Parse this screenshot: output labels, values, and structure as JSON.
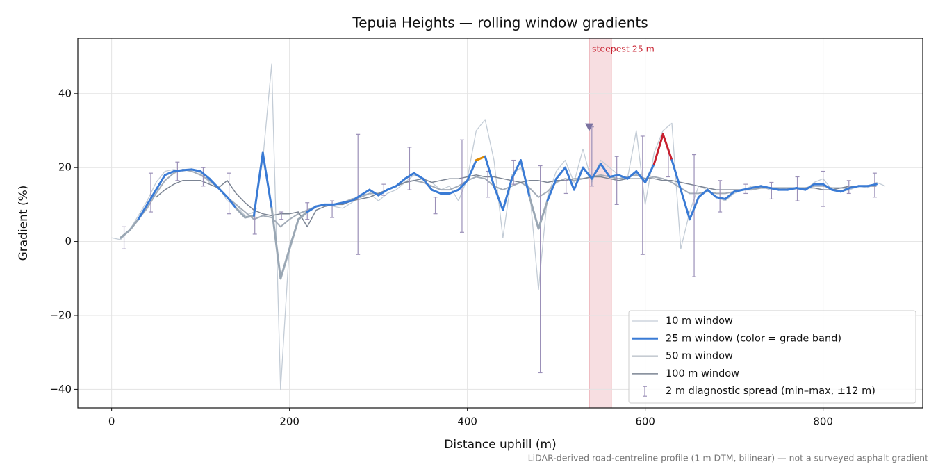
{
  "chart_data": {
    "type": "line",
    "title": "Tepuia Heights — rolling window gradients",
    "x_label": "Distance uphill (m)",
    "y_label": "Gradient (%)",
    "footnote": "LiDAR-derived road-centreline profile (1 m DTM, bilinear) — not a surveyed asphalt gradient",
    "xlim": [
      -38,
      912
    ],
    "ylim": [
      -45,
      55
    ],
    "xticks": [
      0,
      200,
      400,
      600,
      800
    ],
    "yticks": [
      {
        "value": -40,
        "label": "−40"
      },
      {
        "value": -20,
        "label": "−20"
      },
      0,
      20,
      40
    ],
    "grid": true,
    "legend": "lower right",
    "x": [
      0,
      10,
      20,
      30,
      40,
      50,
      60,
      70,
      80,
      90,
      100,
      110,
      120,
      130,
      140,
      150,
      160,
      170,
      180,
      190,
      200,
      210,
      220,
      230,
      240,
      250,
      260,
      270,
      280,
      290,
      300,
      310,
      320,
      330,
      340,
      350,
      360,
      370,
      380,
      390,
      400,
      410,
      420,
      430,
      440,
      450,
      460,
      470,
      480,
      490,
      500,
      510,
      520,
      530,
      540,
      550,
      560,
      570,
      580,
      590,
      600,
      610,
      620,
      630,
      640,
      650,
      660,
      670,
      680,
      690,
      700,
      710,
      720,
      730,
      740,
      750,
      760,
      770,
      780,
      790,
      800,
      810,
      820,
      830,
      840,
      850,
      860,
      870
    ],
    "series": [
      {
        "name": "10 m window",
        "color": "#c3ccd6",
        "values": [
          1,
          0.5,
          3,
          7,
          11,
          16,
          19,
          19.5,
          19,
          19.5,
          18.5,
          16,
          15,
          11,
          10,
          7,
          8,
          22,
          48,
          -40,
          -1,
          6,
          8.5,
          9.5,
          10,
          9.5,
          9,
          10.5,
          12.5,
          13,
          11,
          13,
          14,
          16,
          18,
          17,
          16,
          14,
          15,
          11,
          17,
          30,
          33,
          22,
          1,
          18,
          20,
          14,
          -13,
          12,
          19,
          22,
          16,
          25,
          16,
          22,
          20,
          18,
          17,
          30,
          10,
          24,
          30,
          32,
          -2,
          8,
          15,
          14,
          12,
          11,
          13,
          14,
          15,
          15,
          14,
          14,
          14.5,
          14,
          14,
          16,
          17,
          14,
          13.5,
          14,
          15,
          14.5,
          16,
          15
        ]
      },
      {
        "name": "25 m window (color = grade band)",
        "color": "#3a7bd5",
        "grade_bands": [
          {
            "below": 8,
            "color": "#9aa7b4"
          },
          {
            "below": 20,
            "color": "#3a7bd5"
          },
          {
            "below": 25,
            "color": "#e08a00"
          },
          {
            "color": "#c8202f"
          }
        ],
        "values": [
          null,
          1,
          3,
          6,
          10,
          14,
          18,
          19,
          19.3,
          19.5,
          19,
          17,
          14.5,
          12,
          9,
          6.5,
          7,
          24,
          9,
          -10,
          -2,
          6,
          8,
          9.5,
          10,
          10,
          10.5,
          11,
          12.5,
          14,
          12.5,
          14,
          15,
          17,
          18.5,
          17,
          14,
          13,
          13,
          14,
          16.5,
          22,
          23,
          15,
          8.5,
          17,
          22,
          12,
          3.5,
          11,
          17,
          20,
          14,
          20,
          17,
          21,
          17.5,
          18,
          17,
          19,
          16,
          21,
          29,
          22,
          14,
          6,
          12,
          14,
          12,
          11.5,
          13.5,
          14,
          14.5,
          15,
          14.5,
          14,
          14,
          14.5,
          14,
          15.5,
          15.5,
          14,
          13.5,
          14.5,
          15,
          15,
          15.5,
          null
        ]
      },
      {
        "name": "50 m window",
        "color": "#a3acb8",
        "values": [
          null,
          null,
          3,
          6,
          9,
          13,
          16.5,
          18.5,
          19.5,
          19,
          18,
          16.5,
          14.5,
          12,
          10,
          8,
          6,
          7,
          6.5,
          4,
          6,
          7.5,
          8.5,
          9.5,
          10,
          10,
          10.5,
          11.5,
          12,
          13,
          13,
          14,
          15,
          16,
          16.5,
          16,
          15,
          14,
          14,
          15,
          16.5,
          17.5,
          17,
          15,
          14,
          15,
          16,
          14.5,
          12,
          13.5,
          16,
          17,
          16.5,
          17,
          17.5,
          18,
          17.5,
          17,
          17.5,
          18,
          17,
          17.5,
          17,
          16,
          14.5,
          13,
          13,
          13.5,
          13,
          13,
          13.5,
          14,
          14,
          14.5,
          14.5,
          14.5,
          14.5,
          14.5,
          14.5,
          15,
          15,
          14.5,
          14.5,
          14.5,
          15,
          15,
          15,
          null
        ]
      },
      {
        "name": "100 m window",
        "color": "#7b8493",
        "values": [
          null,
          null,
          null,
          null,
          null,
          12,
          14,
          15.5,
          16.5,
          16.5,
          16.5,
          15.5,
          14.5,
          16.5,
          13,
          10.5,
          8.5,
          7.5,
          7,
          7.5,
          7.5,
          8,
          4,
          8.5,
          9.5,
          10,
          10,
          11,
          11.5,
          12,
          13,
          14,
          15,
          16,
          16.5,
          17,
          16,
          16.5,
          17,
          17,
          17.5,
          18,
          17.5,
          17.5,
          17,
          16.5,
          16,
          16.5,
          16.5,
          16,
          16.5,
          16.5,
          17,
          17,
          17.5,
          17.5,
          17,
          16.5,
          17,
          17,
          17,
          17,
          16.5,
          16.5,
          16,
          15.5,
          15,
          14.5,
          14,
          14,
          14,
          14,
          14.5,
          14.5,
          14.5,
          14.5,
          14.5,
          14.5,
          14.5,
          14.5,
          14,
          14,
          14.5,
          15,
          15,
          15,
          15,
          null
        ]
      }
    ],
    "error_bars": {
      "name": "2 m diagnostic spread (min–max, ±12 m)",
      "color": "#9b90b8",
      "x": [
        14,
        44,
        74,
        103,
        132,
        161,
        191,
        220,
        248,
        277,
        306,
        335,
        364,
        394,
        423,
        452,
        482,
        511,
        540,
        568,
        597,
        626,
        655,
        684,
        713,
        742,
        771,
        800,
        829,
        858
      ],
      "low": [
        -2,
        8,
        16.5,
        15,
        7.5,
        2,
        6,
        6,
        6.5,
        -3.5,
        12.5,
        14,
        7.5,
        2.5,
        12,
        15.5,
        -35.5,
        13,
        15,
        10,
        -3.5,
        17.5,
        -9.5,
        8,
        13,
        11.5,
        11,
        9.5,
        13,
        12
      ],
      "high": [
        4,
        18.5,
        21.5,
        20,
        18.5,
        9,
        8,
        10.5,
        11,
        29,
        15.5,
        25.5,
        12,
        27.5,
        19,
        22,
        20.5,
        16.5,
        31,
        23,
        28.5,
        25,
        23.5,
        16.5,
        15.5,
        16,
        17.5,
        19,
        16.5,
        18.5
      ]
    },
    "highlight": {
      "label": "steepest 25 m",
      "xlim": [
        537,
        562
      ],
      "color": "#e8a0a8",
      "label_color": "#c8202f"
    },
    "marker": {
      "x": 537,
      "y": 31,
      "color": "#7a72a0"
    }
  }
}
